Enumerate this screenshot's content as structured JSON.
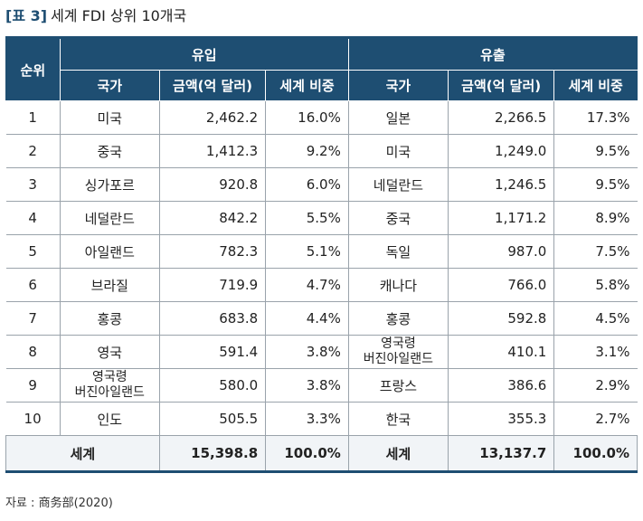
{
  "caption": {
    "tag": "[표 3]",
    "title": "세계 FDI 상위 10개국"
  },
  "header": {
    "rank": "순위",
    "inflow": "유입",
    "outflow": "유출",
    "country": "국가",
    "amount": "금액(억 달러)",
    "share": "세계 비중"
  },
  "rows": [
    {
      "rank": "1",
      "in_country": "미국",
      "in_amount": "2,462.2",
      "in_share": "16.0%",
      "out_country": "일본",
      "out_amount": "2,266.5",
      "out_share": "17.3%"
    },
    {
      "rank": "2",
      "in_country": "중국",
      "in_amount": "1,412.3",
      "in_share": "9.2%",
      "out_country": "미국",
      "out_amount": "1,249.0",
      "out_share": "9.5%"
    },
    {
      "rank": "3",
      "in_country": "싱가포르",
      "in_amount": "920.8",
      "in_share": "6.0%",
      "out_country": "네덜란드",
      "out_amount": "1,246.5",
      "out_share": "9.5%"
    },
    {
      "rank": "4",
      "in_country": "네덜란드",
      "in_amount": "842.2",
      "in_share": "5.5%",
      "out_country": "중국",
      "out_amount": "1,171.2",
      "out_share": "8.9%"
    },
    {
      "rank": "5",
      "in_country": "아일랜드",
      "in_amount": "782.3",
      "in_share": "5.1%",
      "out_country": "독일",
      "out_amount": "987.0",
      "out_share": "7.5%"
    },
    {
      "rank": "6",
      "in_country": "브라질",
      "in_amount": "719.9",
      "in_share": "4.7%",
      "out_country": "캐나다",
      "out_amount": "766.0",
      "out_share": "5.8%"
    },
    {
      "rank": "7",
      "in_country": "홍콩",
      "in_amount": "683.8",
      "in_share": "4.4%",
      "out_country": "홍콩",
      "out_amount": "592.8",
      "out_share": "4.5%"
    },
    {
      "rank": "8",
      "in_country": "영국",
      "in_amount": "591.4",
      "in_share": "3.8%",
      "out_country": "영국령\n버진아일랜드",
      "out_amount": "410.1",
      "out_share": "3.1%"
    },
    {
      "rank": "9",
      "in_country": "영국령\n버진아일랜드",
      "in_amount": "580.0",
      "in_share": "3.8%",
      "out_country": "프랑스",
      "out_amount": "386.6",
      "out_share": "2.9%"
    },
    {
      "rank": "10",
      "in_country": "인도",
      "in_amount": "505.5",
      "in_share": "3.3%",
      "out_country": "한국",
      "out_amount": "355.3",
      "out_share": "2.7%"
    }
  ],
  "total": {
    "label": "세계",
    "in_amount": "15,398.8",
    "in_share": "100.0%",
    "out_label": "세계",
    "out_amount": "13,137.7",
    "out_share": "100.0%"
  },
  "source": "자료 : 商务部(2020)",
  "colors": {
    "header_bg": "#1e4e72",
    "caption_tag": "#1e4e72"
  }
}
